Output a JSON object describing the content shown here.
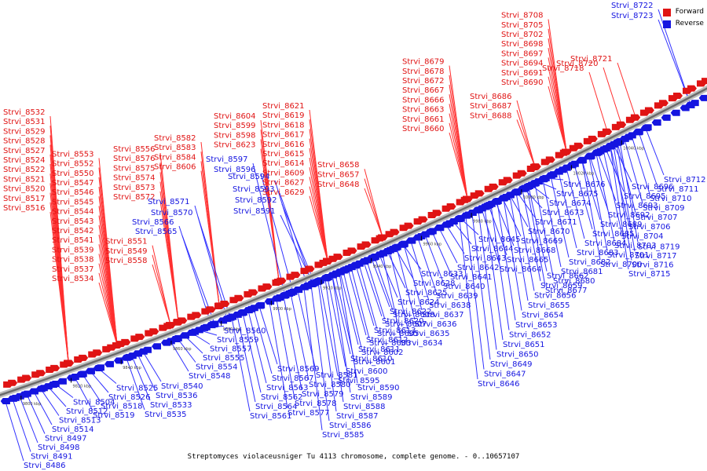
{
  "legend": {
    "forward": "Forward",
    "reverse": "Reverse"
  },
  "colors": {
    "forward": "#e01414",
    "reverse": "#1414e0",
    "axis": "#888888",
    "leader_fwd": "#ff3030",
    "leader_rev": "#3030ff"
  },
  "caption": "Streptomyces violaceusniger Tu 4113 chromosome, complete genome. - 0..10657107",
  "scale_ticks": [
    "9800 kbp",
    "9820 kbp",
    "9840 kbp",
    "9860 kbp",
    "9880 kbp",
    "9900 kbp",
    "9920 kbp",
    "9940 kbp",
    "9960 kbp",
    "9980 kbp",
    "10000 kbp",
    "10020 kbp",
    "10040 kbp"
  ],
  "forward_genes": [
    "Strvi_8516",
    "Strvi_8517",
    "Strvi_8520",
    "Strvi_8521",
    "Strvi_8522",
    "Strvi_8524",
    "Strvi_8527",
    "Strvi_8528",
    "Strvi_8529",
    "Strvi_8531",
    "Strvi_8532",
    "Strvi_8534",
    "Strvi_8537",
    "Strvi_8538",
    "Strvi_8539",
    "Strvi_8541",
    "Strvi_8542",
    "Strvi_8543",
    "Strvi_8544",
    "Strvi_8545",
    "Strvi_8546",
    "Strvi_8547",
    "Strvi_8550",
    "Strvi_8552",
    "Strvi_8553",
    "Strvi_8558",
    "Strvi_8549",
    "Strvi_8551",
    "Strvi_8556",
    "Strvi_8576",
    "Strvi_8575",
    "Strvi_8574",
    "Strvi_8573",
    "Strvi_8572",
    "Strvi_8582",
    "Strvi_8583",
    "Strvi_8584",
    "Strvi_8606",
    "Strvi_8604",
    "Strvi_8599",
    "Strvi_8598",
    "Strvi_8623",
    "Strvi_8621",
    "Strvi_8619",
    "Strvi_8618",
    "Strvi_8617",
    "Strvi_8616",
    "Strvi_8615",
    "Strvi_8614",
    "Strvi_8609",
    "Strvi_8627",
    "Strvi_8629",
    "Strvi_8648",
    "Strvi_8657",
    "Strvi_8658",
    "Strvi_8660",
    "Strvi_8661",
    "Strvi_8663",
    "Strvi_8666",
    "Strvi_8667",
    "Strvi_8672",
    "Strvi_8678",
    "Strvi_8679",
    "Strvi_8686",
    "Strvi_8687",
    "Strvi_8688",
    "Strvi_8690",
    "Strvi_8691",
    "Strvi_8694",
    "Strvi_8697",
    "Strvi_8698",
    "Strvi_8702",
    "Strvi_8705",
    "Strvi_8708",
    "Strvi_8718",
    "Strvi_8720",
    "Strvi_8721"
  ],
  "reverse_upper_genes": [
    "Strvi_8597",
    "Strvi_8596",
    "Strvi_8594",
    "Strvi_8593",
    "Strvi_8592",
    "Strvi_8591",
    "Strvi_8571",
    "Strvi_8570",
    "Strvi_8566",
    "Strvi_8565",
    "Strvi_8722",
    "Strvi_8723"
  ],
  "reverse_lower_genes": [
    "Strvi_8486",
    "Strvi_8491",
    "Strvi_8498",
    "Strvi_8497",
    "Strvi_8514",
    "Strvi_8513",
    "Strvi_8512",
    "Strvi_8504",
    "Strvi_8519",
    "Strvi_8518",
    "Strvi_8526",
    "Strvi_8525",
    "Strvi_8535",
    "Strvi_8533",
    "Strvi_8536",
    "Strvi_8540",
    "Strvi_8548",
    "Strvi_8554",
    "Strvi_8555",
    "Strvi_8557",
    "Strvi_8559",
    "Strvi_8560",
    "Strvi_8561",
    "Strvi_8564",
    "Strvi_8562",
    "Strvi_8563",
    "Strvi_8567",
    "Strvi_8569",
    "Strvi_8577",
    "Strvi_8578",
    "Strvi_8579",
    "Strvi_8580",
    "Strvi_8581",
    "Strvi_8585",
    "Strvi_8586",
    "Strvi_8587",
    "Strvi_8588",
    "Strvi_8589",
    "Strvi_8590",
    "Strvi_8595",
    "Strvi_8600",
    "Strvi_8601",
    "Strvi_8602",
    "Strvi_8603",
    "Strvi_8605",
    "Strvi_8607",
    "Strvi_8608",
    "Strvi_8610",
    "Strvi_8611",
    "Strvi_8612",
    "Strvi_8613",
    "Strvi_8620",
    "Strvi_8622",
    "Strvi_8624",
    "Strvi_8625",
    "Strvi_8628",
    "Strvi_8633",
    "Strvi_8634",
    "Strvi_8635",
    "Strvi_8636",
    "Strvi_8637",
    "Strvi_8638",
    "Strvi_8639",
    "Strvi_8640",
    "Strvi_8641",
    "Strvi_8642",
    "Strvi_8643",
    "Strvi_8644",
    "Strvi_8645",
    "Strvi_8646",
    "Strvi_8647",
    "Strvi_8649",
    "Strvi_8650",
    "Strvi_8651",
    "Strvi_8652",
    "Strvi_8653",
    "Strvi_8654",
    "Strvi_8655",
    "Strvi_8656",
    "Strvi_8659",
    "Strvi_8662",
    "Strvi_8664",
    "Strvi_8665",
    "Strvi_8668",
    "Strvi_8669",
    "Strvi_8670",
    "Strvi_8671",
    "Strvi_8673",
    "Strvi_8674",
    "Strvi_8675",
    "Strvi_8676",
    "Strvi_8677",
    "Strvi_8680",
    "Strvi_8681",
    "Strvi_8682",
    "Strvi_8683",
    "Strvi_8684",
    "Strvi_8685",
    "Strvi_8689",
    "Strvi_8692",
    "Strvi_8693",
    "Strvi_8695",
    "Strvi_8696",
    "Strvi_8700",
    "Strvi_8701",
    "Strvi_8703",
    "Strvi_8704",
    "Strvi_8706",
    "Strvi_8707",
    "Strvi_8709",
    "Strvi_8710",
    "Strvi_8711",
    "Strvi_8712",
    "Strvi_8713",
    "Strvi_8714",
    "Strvi_8715",
    "Strvi_8716",
    "Strvi_8717",
    "Strvi_8719"
  ]
}
